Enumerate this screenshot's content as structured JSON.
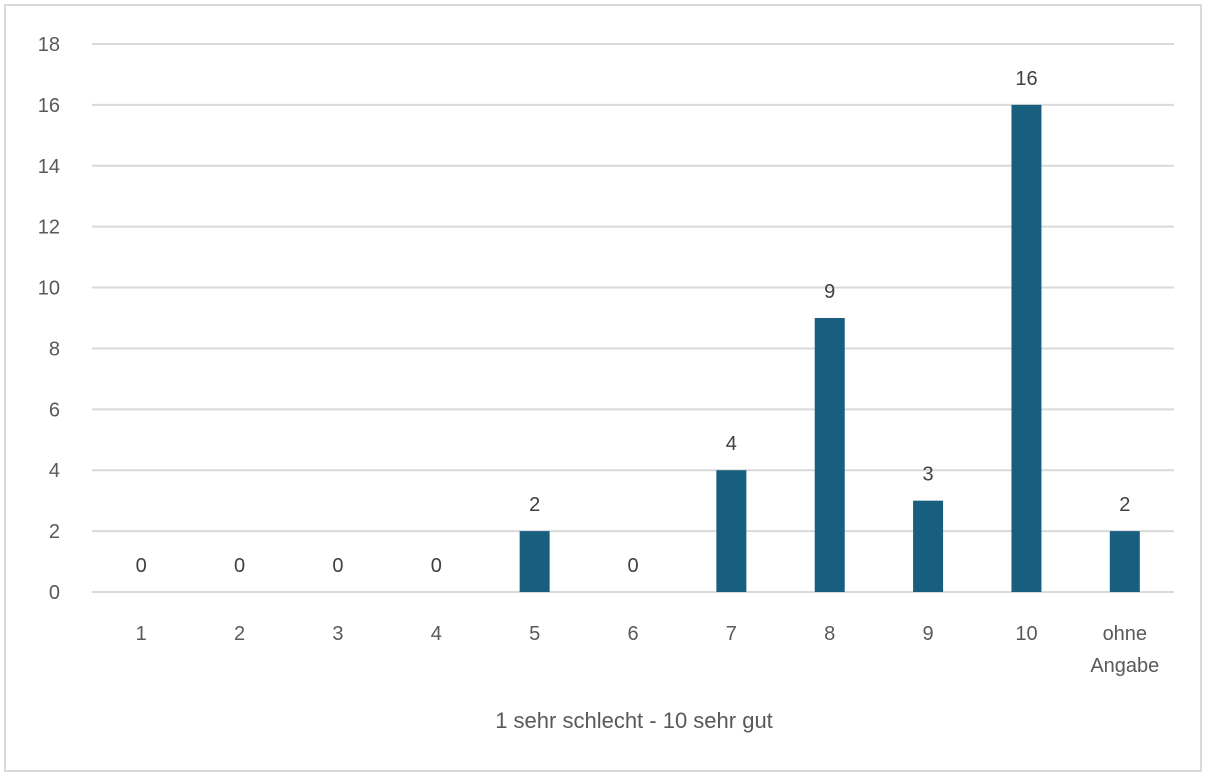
{
  "chart_data": {
    "type": "bar",
    "categories": [
      "1",
      "2",
      "3",
      "4",
      "5",
      "6",
      "7",
      "8",
      "9",
      "10",
      "ohne Angabe"
    ],
    "category_lines": [
      [
        "1"
      ],
      [
        "2"
      ],
      [
        "3"
      ],
      [
        "4"
      ],
      [
        "5"
      ],
      [
        "6"
      ],
      [
        "7"
      ],
      [
        "8"
      ],
      [
        "9"
      ],
      [
        "10"
      ],
      [
        "ohne",
        "Angabe"
      ]
    ],
    "values": [
      0,
      0,
      0,
      0,
      2,
      0,
      4,
      9,
      3,
      16,
      2
    ],
    "title": "",
    "xlabel": "1 sehr schlecht - 10 sehr gut",
    "ylabel": "",
    "ylim": [
      0,
      18
    ],
    "yticks": [
      0,
      2,
      4,
      6,
      8,
      10,
      12,
      14,
      16,
      18
    ],
    "grid": true,
    "legend": "none",
    "bar_color": "#175e7f",
    "grid_color": "#d9d9d9",
    "data_labels": true
  }
}
